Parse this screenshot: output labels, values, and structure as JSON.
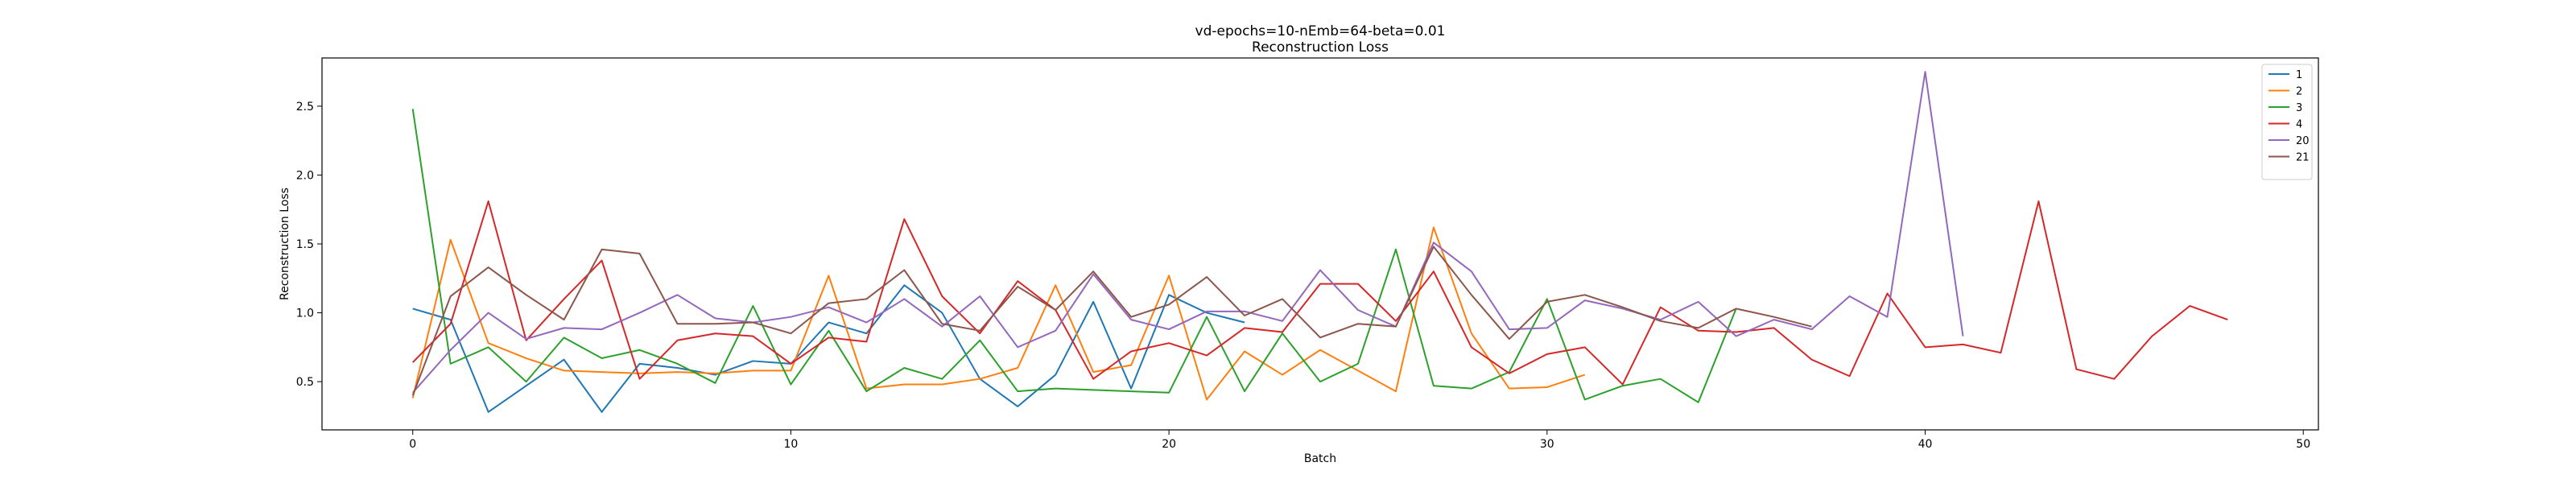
{
  "chart_data": {
    "type": "line",
    "title": "vd-epochs=10-nEmb=64-beta=0.01",
    "subtitle": "Reconstruction Loss",
    "xlabel": "Batch",
    "ylabel": "Reconstruction Loss",
    "xlim": [
      -2.4,
      50.4
    ],
    "ylim": [
      0.15,
      2.85
    ],
    "xticks": [
      0,
      10,
      20,
      30,
      40,
      50
    ],
    "yticks": [
      0.5,
      1.0,
      1.5,
      2.0,
      2.5
    ],
    "xtick_labels": [
      "0",
      "10",
      "20",
      "30",
      "40",
      "50"
    ],
    "ytick_labels": [
      "0.5",
      "1.0",
      "1.5",
      "2.0",
      "2.5"
    ],
    "grid": false,
    "legend_position": "top-right",
    "series": [
      {
        "name": "1",
        "color": "#1f77b4",
        "x": [
          0,
          1,
          2,
          3,
          4,
          5,
          6,
          7,
          8,
          9,
          10,
          11,
          12,
          13,
          14,
          15,
          16,
          17,
          18,
          19,
          20,
          21,
          22
        ],
        "values": [
          1.03,
          0.95,
          0.28,
          0.47,
          0.66,
          0.28,
          0.63,
          0.6,
          0.55,
          0.65,
          0.63,
          0.93,
          0.85,
          1.2,
          1.0,
          0.52,
          0.32,
          0.55,
          1.08,
          0.45,
          1.13,
          1.0,
          0.93
        ]
      },
      {
        "name": "2",
        "color": "#ff7f0e",
        "x": [
          0,
          1,
          2,
          3,
          4,
          5,
          6,
          7,
          8,
          9,
          10,
          11,
          12,
          13,
          14,
          15,
          16,
          17,
          18,
          19,
          20,
          21,
          22,
          23,
          24,
          25,
          26,
          27,
          28,
          29,
          30,
          31
        ],
        "values": [
          0.38,
          1.53,
          0.78,
          0.67,
          0.58,
          0.57,
          0.56,
          0.57,
          0.56,
          0.58,
          0.58,
          1.27,
          0.45,
          0.48,
          0.48,
          0.52,
          0.6,
          1.2,
          0.57,
          0.62,
          1.27,
          0.37,
          0.72,
          0.55,
          0.73,
          0.58,
          0.43,
          1.62,
          0.85,
          0.45,
          0.46,
          0.55
        ]
      },
      {
        "name": "3",
        "color": "#2ca02c",
        "x": [
          0,
          1,
          2,
          3,
          4,
          5,
          6,
          7,
          8,
          9,
          10,
          11,
          12,
          13,
          14,
          15,
          16,
          17,
          18,
          19,
          20,
          21,
          22,
          23,
          24,
          25,
          26,
          27,
          28,
          29,
          30,
          31,
          32,
          33,
          34,
          35
        ],
        "values": [
          2.48,
          0.63,
          0.75,
          0.5,
          0.82,
          0.67,
          0.73,
          0.63,
          0.49,
          1.05,
          0.48,
          0.87,
          0.43,
          0.6,
          0.52,
          0.8,
          0.43,
          0.45,
          0.44,
          0.43,
          0.42,
          0.97,
          0.43,
          0.85,
          0.5,
          0.63,
          1.46,
          0.47,
          0.45,
          0.57,
          1.1,
          0.37,
          0.47,
          0.52,
          0.35,
          1.03
        ]
      },
      {
        "name": "4",
        "color": "#d62728",
        "x": [
          0,
          1,
          2,
          3,
          4,
          5,
          6,
          7,
          8,
          9,
          10,
          11,
          12,
          13,
          14,
          15,
          16,
          17,
          18,
          19,
          20,
          21,
          22,
          23,
          24,
          25,
          26,
          27,
          28,
          29,
          30,
          31,
          32,
          33,
          34,
          35,
          36,
          37,
          38,
          39,
          40,
          41,
          42,
          43,
          44,
          45,
          46,
          47,
          48
        ],
        "values": [
          0.64,
          0.92,
          1.81,
          0.8,
          1.1,
          1.38,
          0.52,
          0.8,
          0.85,
          0.83,
          0.63,
          0.82,
          0.79,
          1.68,
          1.12,
          0.85,
          1.23,
          1.02,
          0.52,
          0.72,
          0.78,
          0.69,
          0.89,
          0.86,
          1.21,
          1.21,
          0.94,
          1.3,
          0.75,
          0.56,
          0.7,
          0.75,
          0.48,
          1.04,
          0.87,
          0.86,
          0.89,
          0.66,
          0.54,
          1.14,
          0.75,
          0.77,
          0.71,
          1.81,
          0.59,
          0.52,
          0.83,
          1.05,
          0.95
        ]
      },
      {
        "name": "20",
        "color": "#9467bd",
        "x": [
          0,
          1,
          2,
          3,
          4,
          5,
          6,
          7,
          8,
          9,
          10,
          11,
          12,
          13,
          14,
          15,
          16,
          17,
          18,
          19,
          20,
          21,
          22,
          23,
          24,
          25,
          26,
          27,
          28,
          29,
          30,
          31,
          32,
          33,
          34,
          35,
          36,
          37,
          38,
          39,
          40,
          41
        ],
        "values": [
          0.42,
          0.73,
          1.0,
          0.81,
          0.89,
          0.88,
          1.0,
          1.13,
          0.96,
          0.93,
          0.97,
          1.04,
          0.93,
          1.1,
          0.9,
          1.12,
          0.75,
          0.87,
          1.28,
          0.95,
          0.88,
          1.01,
          1.01,
          0.94,
          1.31,
          1.02,
          0.9,
          1.51,
          1.3,
          0.88,
          0.89,
          1.09,
          1.03,
          0.95,
          1.08,
          0.83,
          0.95,
          0.88,
          1.12,
          0.97,
          2.75,
          0.83
        ]
      },
      {
        "name": "21",
        "color": "#8c564b",
        "x": [
          0,
          1,
          2,
          3,
          4,
          5,
          6,
          7,
          8,
          9,
          10,
          11,
          12,
          13,
          14,
          15,
          16,
          17,
          18,
          19,
          20,
          21,
          22,
          23,
          24,
          25,
          26,
          27,
          28,
          29,
          30,
          31,
          32,
          33,
          34,
          35,
          36,
          37
        ],
        "values": [
          0.4,
          1.12,
          1.33,
          1.13,
          0.95,
          1.46,
          1.43,
          0.92,
          0.92,
          0.93,
          0.85,
          1.07,
          1.1,
          1.31,
          0.92,
          0.87,
          1.19,
          1.02,
          1.3,
          0.97,
          1.06,
          1.26,
          0.98,
          1.1,
          0.82,
          0.92,
          0.9,
          1.48,
          1.13,
          0.81,
          1.08,
          1.13,
          1.04,
          0.94,
          0.89,
          1.03,
          0.97,
          0.9
        ]
      }
    ]
  }
}
